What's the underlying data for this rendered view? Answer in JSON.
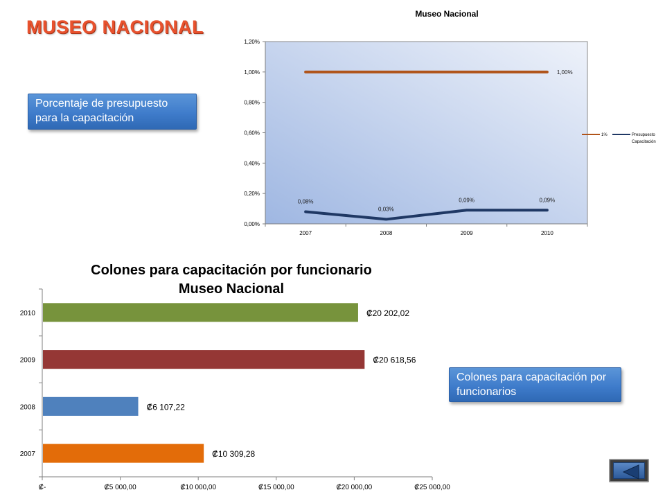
{
  "slide": {
    "title": "MUSEO NACIONAL",
    "callout_percent": "Porcentaje de presupuesto para la capacitación",
    "callout_colones": "Colones para capacitación por funcionarios",
    "nav_back_icon": "back-arrow-icon"
  },
  "colors": {
    "series_1pct": "#b0541a",
    "series_presupuesto": "#1f3864",
    "bar_2010": "#77933c",
    "bar_2009": "#953735",
    "bar_2008": "#4f81bd",
    "bar_2007": "#e36c09",
    "plot_bg_top": "#eef2fa",
    "plot_bg_bottom": "#9fb7e2",
    "callout_blue": "#3f7ccb",
    "title_orange": "#e8522e"
  },
  "chart_data": [
    {
      "type": "line",
      "title": "Museo Nacional",
      "categories": [
        "2007",
        "2008",
        "2009",
        "2010"
      ],
      "ylim": [
        0,
        1.2
      ],
      "yticks": [
        0,
        0.2,
        0.4,
        0.6,
        0.8,
        1.0,
        1.2
      ],
      "ytick_labels": [
        "0,00%",
        "0,20%",
        "0,40%",
        "0,60%",
        "0,80%",
        "1,00%",
        "1,20%"
      ],
      "grid": false,
      "legend": "right",
      "series": [
        {
          "name": "1%",
          "values": [
            1.0,
            1.0,
            1.0,
            1.0
          ],
          "data_labels": [
            "",
            "",
            "",
            "1,00%"
          ]
        },
        {
          "name": "Presupuesto Capacitación",
          "values": [
            0.08,
            0.03,
            0.09,
            0.09
          ],
          "data_labels": [
            "0,08%",
            "0,03%",
            "0,09%",
            "0,09%"
          ]
        }
      ]
    },
    {
      "type": "bar",
      "orientation": "horizontal",
      "title": "Colones para capacitación por funcionario",
      "subtitle": "Museo Nacional",
      "categories": [
        "2010",
        "2009",
        "2008",
        "2007"
      ],
      "values": [
        20202.02,
        20618.56,
        6107.22,
        10309.28
      ],
      "data_labels": [
        "₡20 202,02",
        "₡20 618,56",
        "₡6 107,22",
        "₡10 309,28"
      ],
      "xlim": [
        0,
        25000
      ],
      "xticks": [
        0,
        5000,
        10000,
        15000,
        20000,
        25000
      ],
      "xtick_labels": [
        "₡-",
        "₡5 000,00",
        "₡10 000,00",
        "₡15 000,00",
        "₡20 000,00",
        "₡25 000,00"
      ],
      "grid": false,
      "legend": "none"
    }
  ]
}
